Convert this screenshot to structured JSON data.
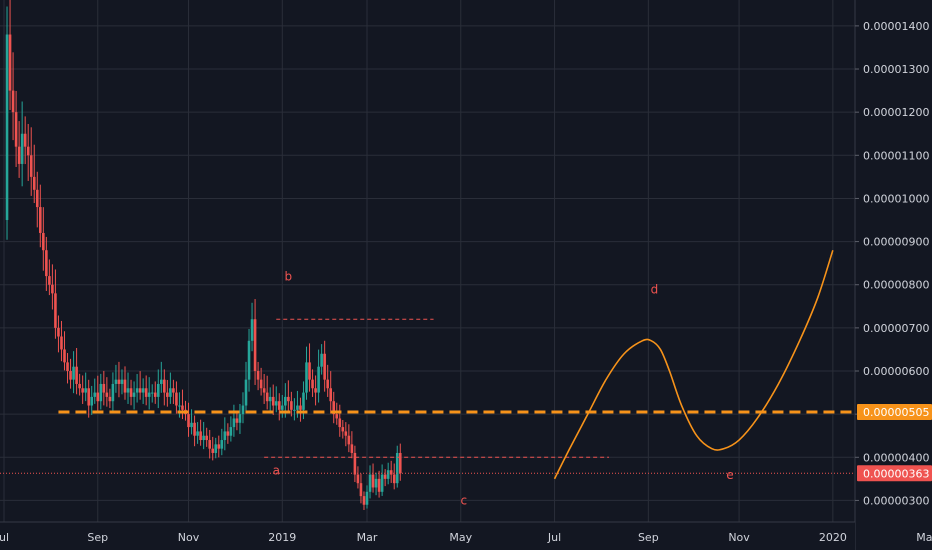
{
  "chart_data": {
    "type": "candlestick",
    "title": "",
    "xlabel": "",
    "ylabel": "",
    "ylim": [
      2.5e-06,
      1.46e-05
    ],
    "grid": true,
    "x_range_days": [
      0,
      280
    ],
    "x_ticks": [
      {
        "label": "ul",
        "day": 0
      },
      {
        "label": "Sep",
        "day": 31
      },
      {
        "label": "Nov",
        "day": 61
      },
      {
        "label": "2019",
        "day": 92
      },
      {
        "label": "Mar",
        "day": 120
      },
      {
        "label": "May",
        "day": 151
      },
      {
        "label": "Jul",
        "day": 182
      },
      {
        "label": "Sep",
        "day": 213
      },
      {
        "label": "Nov",
        "day": 243
      },
      {
        "label": "2020",
        "day": 274
      },
      {
        "label": "Mar",
        "day": 305
      }
    ],
    "y_ticks": [
      {
        "label": "0.00001400",
        "value": 1.4e-05
      },
      {
        "label": "0.00001300",
        "value": 1.3e-05
      },
      {
        "label": "0.00001200",
        "value": 1.2e-05
      },
      {
        "label": "0.00001100",
        "value": 1.1e-05
      },
      {
        "label": "0.00001000",
        "value": 1e-05
      },
      {
        "label": "0.00000900",
        "value": 9e-06
      },
      {
        "label": "0.00000800",
        "value": 8e-06
      },
      {
        "label": "0.00000700",
        "value": 7e-06
      },
      {
        "label": "0.00000600",
        "value": 6e-06
      },
      {
        "label": "0.00000500",
        "value": 5e-06
      },
      {
        "label": "0.00000400",
        "value": 4e-06
      },
      {
        "label": "0.00000300",
        "value": 3e-06
      }
    ],
    "price_series": [
      [
        0,
        9.5e-06
      ],
      [
        1,
        1.38e-05
      ],
      [
        2,
        1.25e-05
      ],
      [
        3,
        1.2e-05
      ],
      [
        4,
        1.12e-05
      ],
      [
        5,
        1.08e-05
      ],
      [
        6,
        1.15e-05
      ],
      [
        7,
        1.12e-05
      ],
      [
        8,
        1.1e-05
      ],
      [
        9,
        1.05e-05
      ],
      [
        10,
        1.02e-05
      ],
      [
        11,
        9.8e-06
      ],
      [
        12,
        9.2e-06
      ],
      [
        13,
        8.8e-06
      ],
      [
        14,
        8.2e-06
      ],
      [
        15,
        8e-06
      ],
      [
        16,
        7.8e-06
      ],
      [
        17,
        7e-06
      ],
      [
        18,
        6.8e-06
      ],
      [
        19,
        6.5e-06
      ],
      [
        20,
        6.2e-06
      ],
      [
        21,
        6e-06
      ],
      [
        22,
        5.8e-06
      ],
      [
        23,
        6.1e-06
      ],
      [
        24,
        5.7e-06
      ],
      [
        25,
        5.6e-06
      ],
      [
        26,
        5.5e-06
      ],
      [
        27,
        5.6e-06
      ],
      [
        28,
        5.2e-06
      ],
      [
        29,
        5.4e-06
      ],
      [
        30,
        5.5e-06
      ],
      [
        31,
        5.3e-06
      ],
      [
        32,
        5.7e-06
      ],
      [
        33,
        5.5e-06
      ],
      [
        34,
        5.4e-06
      ],
      [
        35,
        5.3e-06
      ],
      [
        36,
        5.7e-06
      ],
      [
        37,
        5.8e-06
      ],
      [
        38,
        5.7e-06
      ],
      [
        39,
        5.8e-06
      ],
      [
        40,
        5.5e-06
      ],
      [
        41,
        5.6e-06
      ],
      [
        42,
        5.4e-06
      ],
      [
        43,
        5.5e-06
      ],
      [
        44,
        5.6e-06
      ],
      [
        45,
        5.5e-06
      ],
      [
        46,
        5.6e-06
      ],
      [
        47,
        5.4e-06
      ],
      [
        48,
        5.5e-06
      ],
      [
        49,
        5.5e-06
      ],
      [
        50,
        5.4e-06
      ],
      [
        51,
        5.7e-06
      ],
      [
        52,
        5.8e-06
      ],
      [
        53,
        5.5e-06
      ],
      [
        54,
        5.4e-06
      ],
      [
        55,
        5.6e-06
      ],
      [
        56,
        5.5e-06
      ],
      [
        57,
        5.2e-06
      ],
      [
        58,
        5.2e-06
      ],
      [
        59,
        5.1e-06
      ],
      [
        60,
        5e-06
      ],
      [
        61,
        4.7e-06
      ],
      [
        62,
        4.8e-06
      ],
      [
        63,
        4.5e-06
      ],
      [
        64,
        4.6e-06
      ],
      [
        65,
        4.4e-06
      ],
      [
        66,
        4.5e-06
      ],
      [
        67,
        4.4e-06
      ],
      [
        68,
        4.2e-06
      ],
      [
        69,
        4.1e-06
      ],
      [
        70,
        4.3e-06
      ],
      [
        71,
        4.2e-06
      ],
      [
        72,
        4.4e-06
      ],
      [
        73,
        4.6e-06
      ],
      [
        74,
        4.5e-06
      ],
      [
        75,
        4.7e-06
      ],
      [
        76,
        4.9e-06
      ],
      [
        77,
        4.8e-06
      ],
      [
        78,
        5e-06
      ],
      [
        79,
        5.2e-06
      ],
      [
        80,
        5.8e-06
      ],
      [
        81,
        6.7e-06
      ],
      [
        82,
        7.2e-06
      ],
      [
        83,
        6e-06
      ],
      [
        84,
        5.8e-06
      ],
      [
        85,
        5.6e-06
      ],
      [
        86,
        5.5e-06
      ],
      [
        87,
        5.3e-06
      ],
      [
        88,
        5.4e-06
      ],
      [
        89,
        5.2e-06
      ],
      [
        90,
        5.3e-06
      ],
      [
        91,
        5.1e-06
      ],
      [
        92,
        5.2e-06
      ],
      [
        93,
        5.4e-06
      ],
      [
        94,
        5.3e-06
      ],
      [
        95,
        5.1e-06
      ],
      [
        96,
        5.1e-06
      ],
      [
        97,
        5.2e-06
      ],
      [
        98,
        5.1e-06
      ],
      [
        99,
        5.5e-06
      ],
      [
        100,
        6.2e-06
      ],
      [
        101,
        5.8e-06
      ],
      [
        102,
        5.6e-06
      ],
      [
        103,
        5.5e-06
      ],
      [
        104,
        6.1e-06
      ],
      [
        105,
        6.4e-06
      ],
      [
        106,
        5.8e-06
      ],
      [
        107,
        5.6e-06
      ],
      [
        108,
        5.3e-06
      ],
      [
        109,
        5e-06
      ],
      [
        110,
        4.9e-06
      ],
      [
        111,
        4.7e-06
      ],
      [
        112,
        4.6e-06
      ],
      [
        113,
        4.5e-06
      ],
      [
        114,
        4.3e-06
      ],
      [
        115,
        4.1e-06
      ],
      [
        116,
        3.6e-06
      ],
      [
        117,
        3.4e-06
      ],
      [
        118,
        3.1e-06
      ],
      [
        119,
        2.9e-06
      ],
      [
        120,
        3.2e-06
      ],
      [
        121,
        3.6e-06
      ],
      [
        122,
        3.3e-06
      ],
      [
        123,
        3.5e-06
      ],
      [
        124,
        3.2e-06
      ],
      [
        125,
        3.6e-06
      ],
      [
        126,
        3.5e-06
      ],
      [
        127,
        3.7e-06
      ],
      [
        128,
        3.6e-06
      ],
      [
        129,
        3.4e-06
      ],
      [
        130,
        4.1e-06
      ],
      [
        131,
        3.63e-06
      ]
    ],
    "projection": [
      [
        182,
        3.5e-06
      ],
      [
        187,
        4.2e-06
      ],
      [
        193,
        5e-06
      ],
      [
        199,
        5.8e-06
      ],
      [
        205,
        6.4e-06
      ],
      [
        211,
        6.7e-06
      ],
      [
        214,
        6.7e-06
      ],
      [
        217,
        6.5e-06
      ],
      [
        220,
        6e-06
      ],
      [
        224,
        5.2e-06
      ],
      [
        229,
        4.5e-06
      ],
      [
        234,
        4.2e-06
      ],
      [
        238,
        4.2e-06
      ],
      [
        243,
        4.4e-06
      ],
      [
        249,
        4.9e-06
      ],
      [
        256,
        5.7e-06
      ],
      [
        263,
        6.7e-06
      ],
      [
        269,
        7.7e-06
      ],
      [
        274,
        8.8e-06
      ]
    ],
    "support_level": 5.05e-06,
    "current_price": 3.63e-06,
    "badges": {
      "support": "0.00000505",
      "current": "0.00000363"
    },
    "annotations": [
      {
        "label": "a",
        "day": 90,
        "value": 3.6e-06
      },
      {
        "label": "b",
        "day": 94,
        "value": 8.1e-06
      },
      {
        "label": "c",
        "day": 152,
        "value": 2.9e-06
      },
      {
        "label": "d",
        "day": 215,
        "value": 7.8e-06
      },
      {
        "label": "e",
        "day": 240,
        "value": 3.5e-06
      }
    ],
    "ref_lines": [
      {
        "from_day": 90,
        "to_day": 142,
        "value": 7.2e-06
      },
      {
        "from_day": 86,
        "to_day": 200,
        "value": 4e-06
      }
    ],
    "colors": {
      "background": "#131722",
      "grid": "#2a2e39",
      "up": "#26a69a",
      "down": "#ef5350",
      "projection": "#f7931a",
      "support": "#f7931a",
      "current": "#ef5350",
      "annotation": "#ef5350",
      "axis_text": "#d1d4dc"
    }
  }
}
